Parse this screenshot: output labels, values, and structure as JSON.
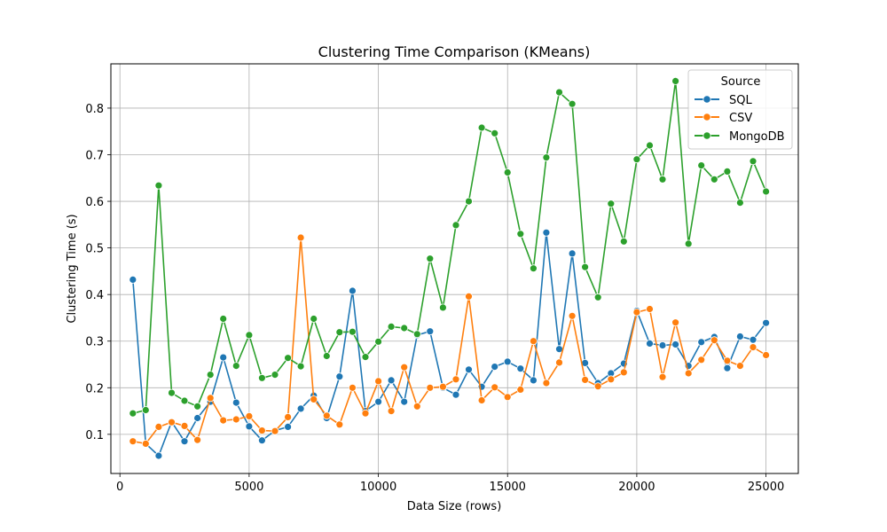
{
  "chart_data": {
    "type": "line",
    "title": "Clustering Time Comparison (KMeans)",
    "xlabel": "Data Size (rows)",
    "ylabel": "Clustering Time (s)",
    "xlim": [
      -350,
      26250
    ],
    "ylim": [
      0.016,
      0.895
    ],
    "xticks": [
      0,
      5000,
      10000,
      15000,
      20000,
      25000
    ],
    "xtick_labels": [
      "0",
      "5000",
      "10000",
      "15000",
      "20000",
      "25000"
    ],
    "yticks": [
      0.1,
      0.2,
      0.3,
      0.4,
      0.5,
      0.6,
      0.7,
      0.8
    ],
    "ytick_labels": [
      "0.1",
      "0.2",
      "0.3",
      "0.4",
      "0.5",
      "0.6",
      "0.7",
      "0.8"
    ],
    "grid": true,
    "legend": {
      "title": "Source",
      "position": "top-right"
    },
    "x": [
      500,
      1000,
      1500,
      2000,
      2500,
      3000,
      3500,
      4000,
      4500,
      5000,
      5500,
      6000,
      6500,
      7000,
      7500,
      8000,
      8500,
      9000,
      9500,
      10000,
      10500,
      11000,
      11500,
      12000,
      12500,
      13000,
      13500,
      14000,
      14500,
      15000,
      15500,
      16000,
      16500,
      17000,
      17500,
      18000,
      18500,
      19000,
      19500,
      20000,
      20500,
      21000,
      21500,
      22000,
      22500,
      23000,
      23500,
      24000,
      24500,
      25000
    ],
    "series": [
      {
        "name": "SQL",
        "color": "#1f77b4",
        "values": [
          0.432,
          0.08,
          0.054,
          0.127,
          0.085,
          0.135,
          0.17,
          0.265,
          0.168,
          0.117,
          0.087,
          0.108,
          0.116,
          0.155,
          0.183,
          0.135,
          0.224,
          0.408,
          0.15,
          0.17,
          0.216,
          0.17,
          0.313,
          0.321,
          0.2,
          0.185,
          0.239,
          0.202,
          0.245,
          0.256,
          0.241,
          0.216,
          0.533,
          0.283,
          0.488,
          0.253,
          0.21,
          0.231,
          0.252,
          0.365,
          0.295,
          0.291,
          0.293,
          0.247,
          0.298,
          0.309,
          0.242,
          0.31,
          0.303,
          0.339
        ]
      },
      {
        "name": "CSV",
        "color": "#ff7f0e",
        "values": [
          0.085,
          0.08,
          0.116,
          0.126,
          0.118,
          0.088,
          0.178,
          0.13,
          0.132,
          0.139,
          0.108,
          0.107,
          0.137,
          0.522,
          0.175,
          0.14,
          0.121,
          0.2,
          0.145,
          0.214,
          0.15,
          0.244,
          0.16,
          0.2,
          0.202,
          0.218,
          0.396,
          0.173,
          0.201,
          0.18,
          0.196,
          0.3,
          0.21,
          0.254,
          0.354,
          0.217,
          0.203,
          0.218,
          0.233,
          0.362,
          0.369,
          0.223,
          0.34,
          0.231,
          0.26,
          0.302,
          0.258,
          0.247,
          0.287,
          0.27
        ]
      },
      {
        "name": "MongoDB",
        "color": "#2ca02c",
        "values": [
          0.145,
          0.152,
          0.634,
          0.189,
          0.172,
          0.16,
          0.228,
          0.348,
          0.247,
          0.313,
          0.221,
          0.228,
          0.264,
          0.246,
          0.348,
          0.268,
          0.319,
          0.32,
          0.266,
          0.299,
          0.331,
          0.328,
          0.315,
          0.477,
          0.372,
          0.549,
          0.6,
          0.758,
          0.746,
          0.662,
          0.53,
          0.456,
          0.694,
          0.834,
          0.809,
          0.459,
          0.394,
          0.595,
          0.514,
          0.69,
          0.72,
          0.647,
          0.858,
          0.509,
          0.677,
          0.647,
          0.664,
          0.597,
          0.686,
          0.621
        ]
      }
    ]
  }
}
